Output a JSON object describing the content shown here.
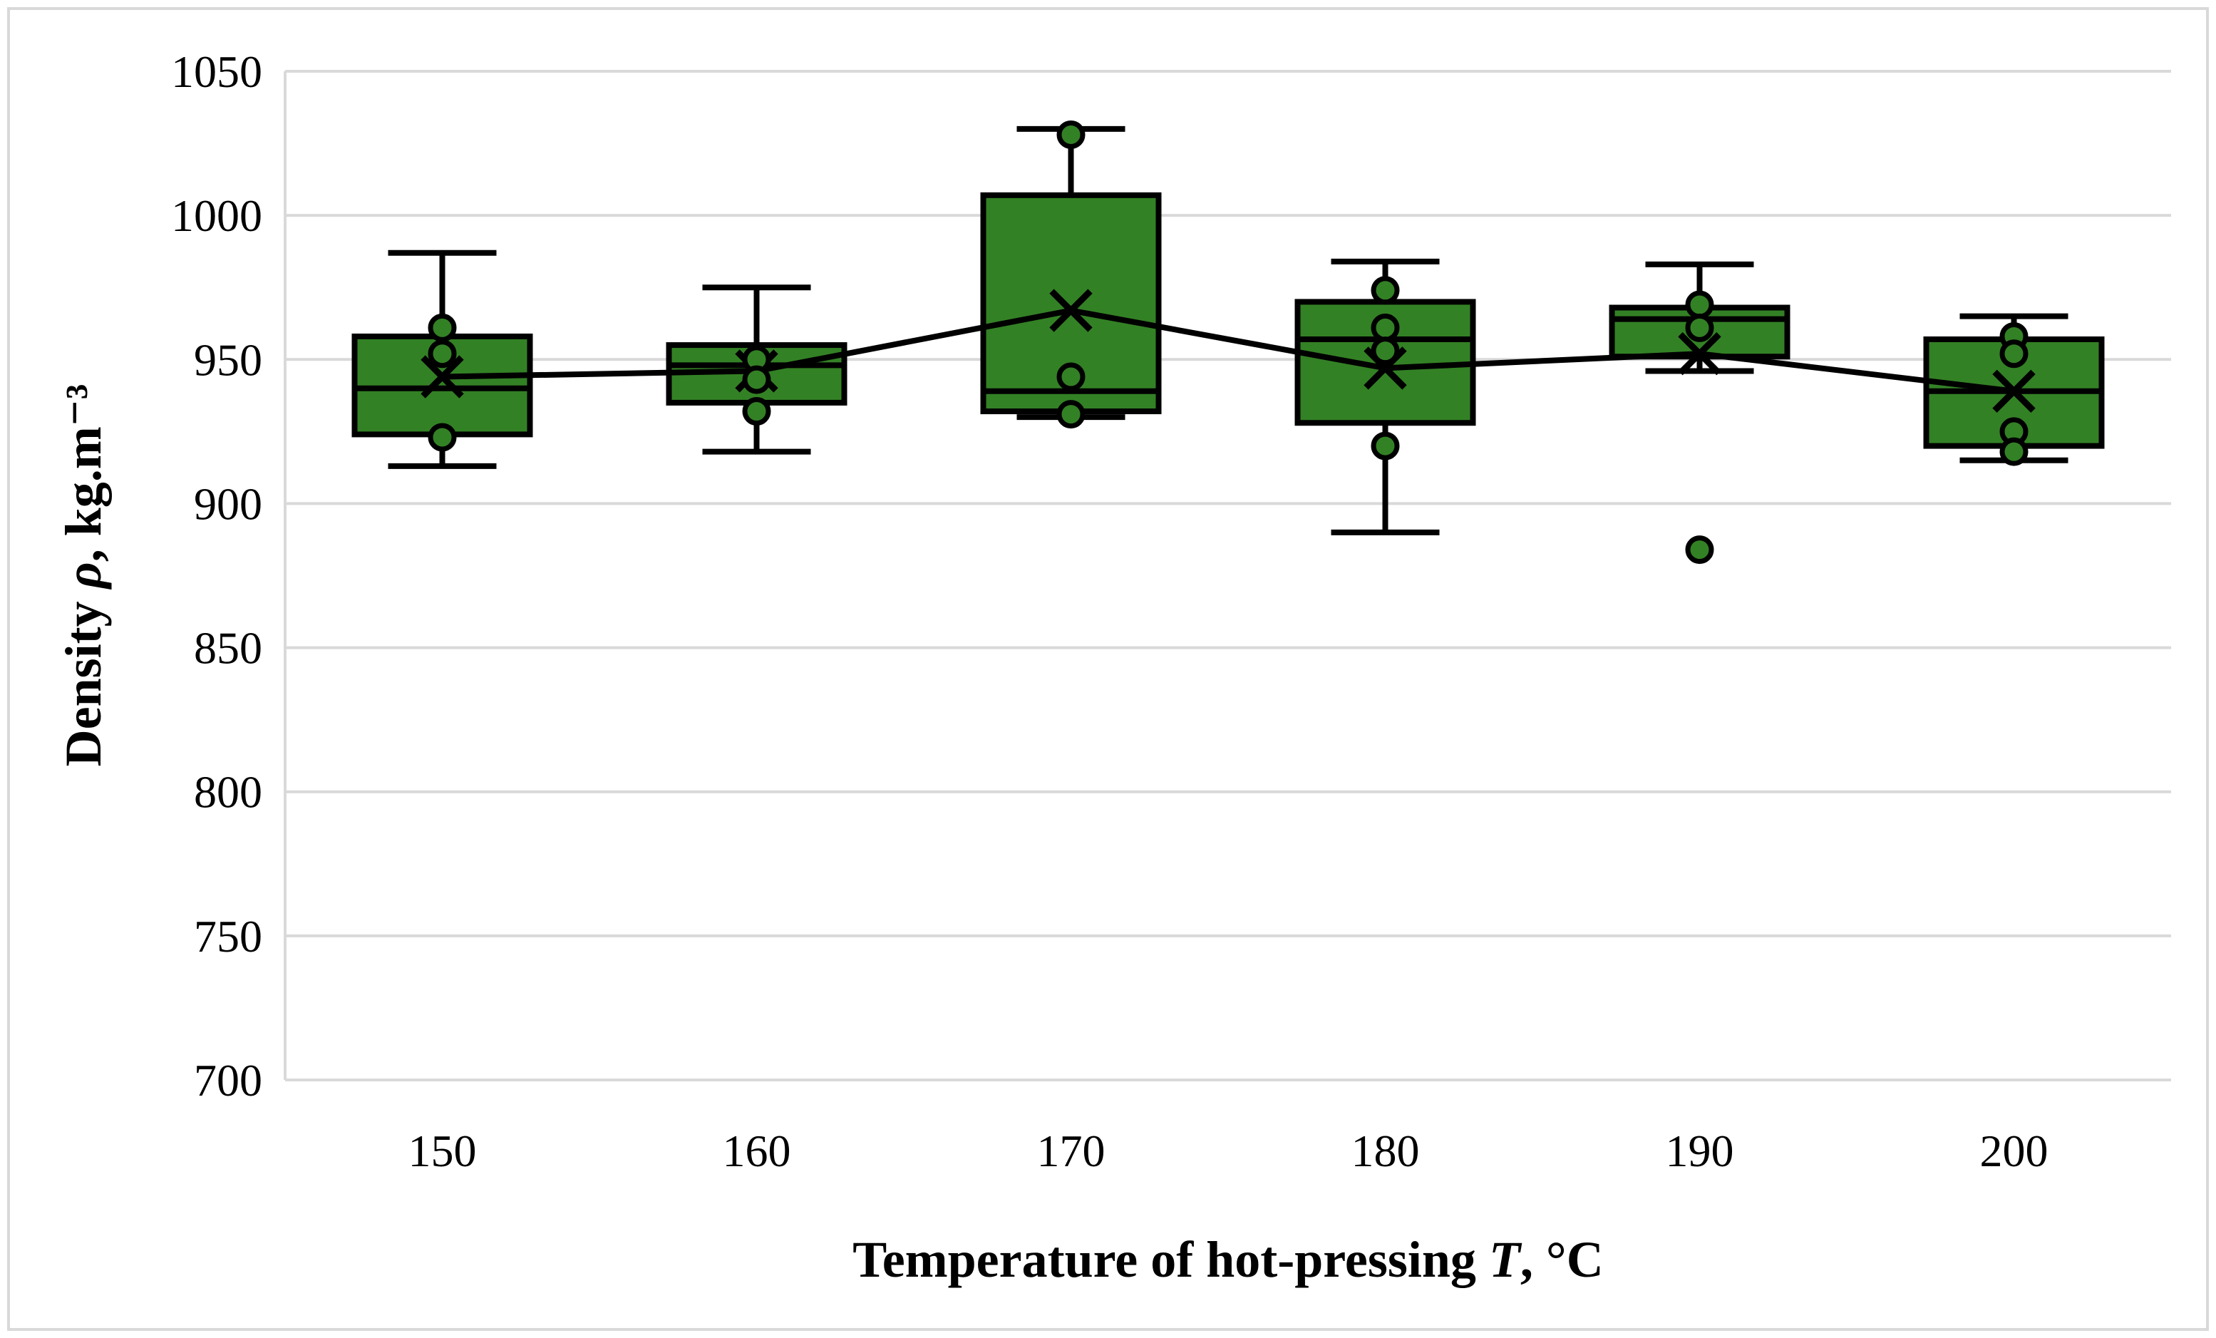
{
  "chart_data": {
    "type": "box",
    "title": "",
    "legend": "none",
    "grid": "horizontal",
    "x_axis": {
      "label_prefix": "Temperature of hot-pressing ",
      "label_symbol": "T",
      "label_suffix": ", °C",
      "tick_labels": [
        "150",
        "160",
        "170",
        "180",
        "190",
        "200"
      ]
    },
    "y_axis": {
      "label_prefix": "Density ",
      "label_symbol": "ρ",
      "label_suffix": ", kg.m⁻³",
      "min": 700,
      "max": 1050,
      "step": 50,
      "tick_labels": [
        "700",
        "750",
        "800",
        "850",
        "900",
        "950",
        "1000",
        "1050"
      ]
    },
    "categories": [
      "150",
      "160",
      "170",
      "180",
      "190",
      "200"
    ],
    "series": [
      {
        "category": "150",
        "whisker_low": 913,
        "q1": 924,
        "median": 940,
        "q3": 958,
        "whisker_high": 987,
        "mean": 944,
        "points": [
          961,
          952,
          923
        ]
      },
      {
        "category": "160",
        "whisker_low": 918,
        "q1": 935,
        "median": 948,
        "q3": 955,
        "whisker_high": 975,
        "mean": 946,
        "points": [
          950,
          943,
          932
        ]
      },
      {
        "category": "170",
        "whisker_low": 930,
        "q1": 932,
        "median": 939,
        "q3": 1007,
        "whisker_high": 1030,
        "mean": 967,
        "points": [
          1028,
          944,
          931
        ]
      },
      {
        "category": "180",
        "whisker_low": 890,
        "q1": 928,
        "median": 957,
        "q3": 970,
        "whisker_high": 984,
        "mean": 947,
        "points": [
          974,
          961,
          953,
          920
        ]
      },
      {
        "category": "190",
        "whisker_low": 946,
        "q1": 951,
        "median": 964,
        "q3": 968,
        "whisker_high": 983,
        "mean": 952,
        "points": [
          969,
          961,
          884
        ]
      },
      {
        "category": "200",
        "whisker_low": 915,
        "q1": 920,
        "median": 939,
        "q3": 957,
        "whisker_high": 965,
        "mean": 939,
        "points": [
          958,
          952,
          925,
          918
        ]
      }
    ],
    "mean_marker": "x",
    "mean_line_connects_categories": true,
    "colors": {
      "box_fill": "#338125",
      "stroke": "#000000",
      "gridline": "#d9d9d9",
      "figure_border": "#d9d9d9",
      "background": "#ffffff"
    }
  }
}
